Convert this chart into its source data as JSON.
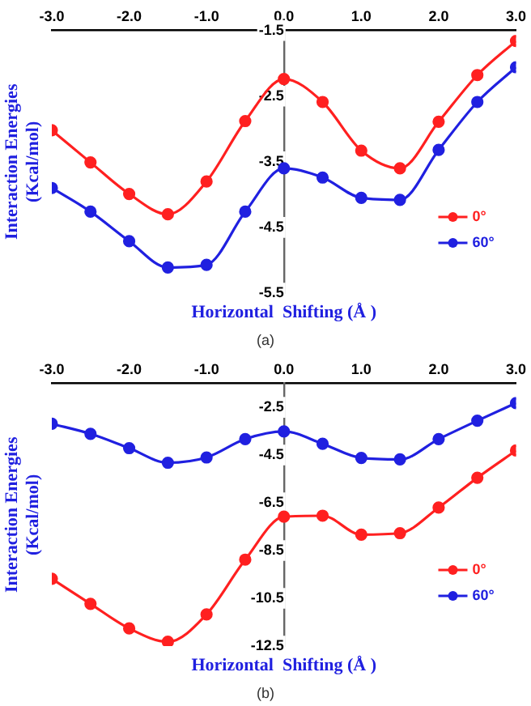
{
  "chart_data": [
    {
      "type": "line",
      "xlabel": "Horizontal  Shifting (Å )",
      "ylabel": "Interaction Energies (Kcal/mol)",
      "annotations": [
        "(a)"
      ],
      "x": [
        -3,
        -2.5,
        -2,
        -1.5,
        -1,
        -0.5,
        0,
        0.5,
        1,
        1.5,
        2,
        2.5,
        3
      ],
      "series": [
        {
          "name": "0°",
          "color": "#ff2020",
          "values": [
            -3.02,
            -3.51,
            -3.99,
            -4.3,
            -3.8,
            -2.88,
            -2.24,
            -2.59,
            -3.33,
            -3.6,
            -2.89,
            -2.18,
            -1.66
          ]
        },
        {
          "name": "60°",
          "color": "#2020e0",
          "values": [
            -3.9,
            -4.26,
            -4.71,
            -5.11,
            -5.07,
            -4.26,
            -3.6,
            -3.74,
            -4.05,
            -4.08,
            -3.32,
            -2.59,
            -2.06
          ]
        }
      ],
      "xlim": [
        -3,
        3
      ],
      "xticks": [
        {
          "value": -3,
          "label": "-3.0"
        },
        {
          "value": -2,
          "label": "-2.0"
        },
        {
          "value": -1,
          "label": "-1.0"
        },
        {
          "value": 0,
          "label": "0.0"
        },
        {
          "value": 1,
          "label": "1.0"
        },
        {
          "value": 2,
          "label": "2.0"
        },
        {
          "value": 3,
          "label": "3.0"
        }
      ],
      "ylim": [
        -5.5,
        -1.5
      ],
      "yticks": [
        -5.5,
        -4.5,
        -3.5,
        -2.5,
        -1.5
      ],
      "grid": false,
      "legend": "right",
      "marker": "circle",
      "line_style": "solid"
    },
    {
      "type": "line",
      "xlabel": "Horizontal  Shifting (Å )",
      "ylabel": "Interaction Energies (Kcal/mol)",
      "annotations": [
        "(b)"
      ],
      "x": [
        -3,
        -2.5,
        -2,
        -1.5,
        -1,
        -0.5,
        0,
        0.5,
        1,
        1.5,
        2,
        2.5,
        3
      ],
      "series": [
        {
          "name": "0°",
          "color": "#ff2020",
          "values": [
            -9.68,
            -10.73,
            -11.76,
            -12.32,
            -11.17,
            -8.88,
            -7.08,
            -7.04,
            -7.83,
            -7.77,
            -6.7,
            -5.45,
            -4.31
          ]
        },
        {
          "name": "60°",
          "color": "#2020e0",
          "values": [
            -3.19,
            -3.61,
            -4.21,
            -4.82,
            -4.6,
            -3.83,
            -3.51,
            -4.03,
            -4.62,
            -4.68,
            -3.83,
            -3.06,
            -2.32
          ]
        }
      ],
      "xlim": [
        -3,
        3
      ],
      "xticks": [
        {
          "value": -3,
          "label": "-3.0"
        },
        {
          "value": -2,
          "label": "-2.0"
        },
        {
          "value": -1,
          "label": "-1.0"
        },
        {
          "value": 0,
          "label": "0.0"
        },
        {
          "value": 1,
          "label": "1.0"
        },
        {
          "value": 2,
          "label": "2.0"
        },
        {
          "value": 3,
          "label": "3.0"
        }
      ],
      "ylim": [
        -12.5,
        -1.5
      ],
      "yticks": [
        -12.5,
        -10.5,
        -8.5,
        -6.5,
        -4.5,
        -2.5
      ],
      "grid": false,
      "legend": "right",
      "marker": "circle",
      "line_style": "solid"
    }
  ]
}
